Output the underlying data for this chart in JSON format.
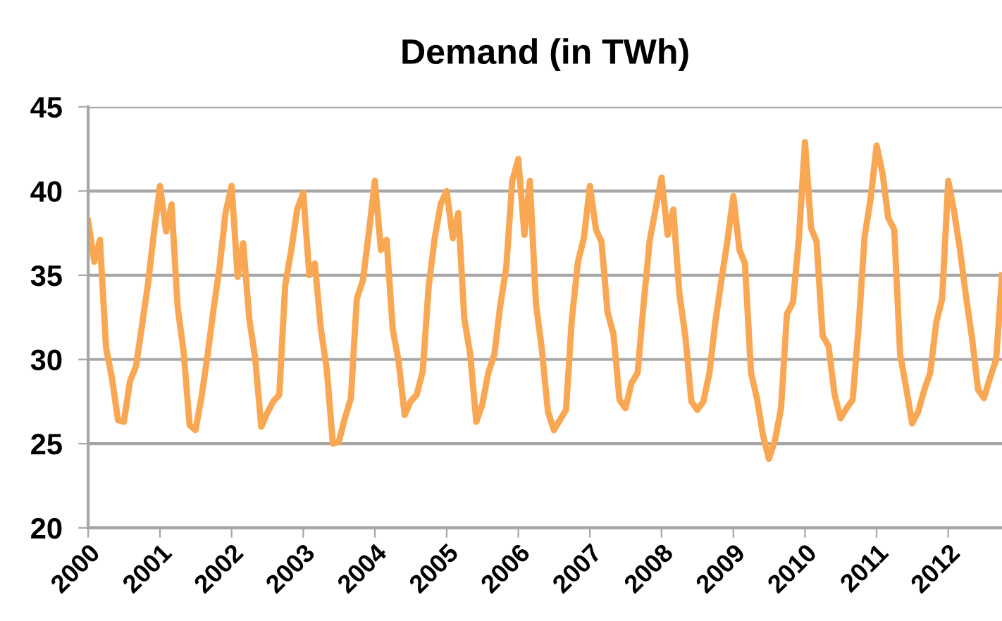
{
  "chart_data": {
    "type": "line",
    "title": "Demand (in TWh)",
    "x": [
      "2000-01",
      "2000-02",
      "2000-03",
      "2000-04",
      "2000-05",
      "2000-06",
      "2000-07",
      "2000-08",
      "2000-09",
      "2000-10",
      "2000-11",
      "2000-12",
      "2001-01",
      "2001-02",
      "2001-03",
      "2001-04",
      "2001-05",
      "2001-06",
      "2001-07",
      "2001-08",
      "2001-09",
      "2001-10",
      "2001-11",
      "2001-12",
      "2002-01",
      "2002-02",
      "2002-03",
      "2002-04",
      "2002-05",
      "2002-06",
      "2002-07",
      "2002-08",
      "2002-09",
      "2002-10",
      "2002-11",
      "2002-12",
      "2003-01",
      "2003-02",
      "2003-03",
      "2003-04",
      "2003-05",
      "2003-06",
      "2003-07",
      "2003-08",
      "2003-09",
      "2003-10",
      "2003-11",
      "2003-12",
      "2004-01",
      "2004-02",
      "2004-03",
      "2004-04",
      "2004-05",
      "2004-06",
      "2004-07",
      "2004-08",
      "2004-09",
      "2004-10",
      "2004-11",
      "2004-12",
      "2005-01",
      "2005-02",
      "2005-03",
      "2005-04",
      "2005-05",
      "2005-06",
      "2005-07",
      "2005-08",
      "2005-09",
      "2005-10",
      "2005-11",
      "2005-12",
      "2006-01",
      "2006-02",
      "2006-03",
      "2006-04",
      "2006-05",
      "2006-06",
      "2006-07",
      "2006-08",
      "2006-09",
      "2006-10",
      "2006-11",
      "2006-12",
      "2007-01",
      "2007-02",
      "2007-03",
      "2007-04",
      "2007-05",
      "2007-06",
      "2007-07",
      "2007-08",
      "2007-09",
      "2007-10",
      "2007-11",
      "2007-12",
      "2008-01",
      "2008-02",
      "2008-03",
      "2008-04",
      "2008-05",
      "2008-06",
      "2008-07",
      "2008-08",
      "2008-09",
      "2008-10",
      "2008-11",
      "2008-12",
      "2009-01",
      "2009-02",
      "2009-03",
      "2009-04",
      "2009-05",
      "2009-06",
      "2009-07",
      "2009-08",
      "2009-09",
      "2009-10",
      "2009-11",
      "2009-12",
      "2010-01",
      "2010-02",
      "2010-03",
      "2010-04",
      "2010-05",
      "2010-06",
      "2010-07",
      "2010-08",
      "2010-09",
      "2010-10",
      "2010-11",
      "2010-12",
      "2011-01",
      "2011-02",
      "2011-03",
      "2011-04",
      "2011-05",
      "2011-06",
      "2011-07",
      "2011-08",
      "2011-09",
      "2011-10",
      "2011-11",
      "2011-12",
      "2012-01",
      "2012-02",
      "2012-03",
      "2012-04",
      "2012-05",
      "2012-06",
      "2012-07",
      "2012-08",
      "2012-09",
      "2012-10"
    ],
    "series": [
      {
        "color": "#f9a752",
        "values": [
          38.2,
          35.8,
          37.1,
          30.7,
          28.9,
          26.4,
          26.3,
          28.7,
          29.6,
          32.0,
          34.5,
          37.5,
          40.3,
          37.6,
          39.2,
          33.1,
          30.5,
          26.1,
          25.8,
          27.8,
          30.3,
          33.0,
          35.5,
          38.7,
          40.3,
          34.9,
          36.9,
          32.4,
          30.1,
          26.0,
          26.8,
          27.5,
          27.9,
          34.4,
          36.5,
          38.9,
          39.9,
          35.0,
          35.7,
          31.8,
          29.4,
          25.0,
          25.1,
          26.5,
          27.7,
          33.6,
          34.7,
          37.5,
          40.6,
          36.5,
          37.1,
          31.8,
          29.9,
          26.7,
          27.5,
          27.9,
          29.3,
          34.3,
          37.2,
          39.2,
          40.0,
          37.2,
          38.7,
          32.4,
          30.3,
          26.3,
          27.3,
          29.2,
          30.3,
          33.2,
          35.5,
          40.6,
          41.9,
          37.4,
          40.6,
          33.3,
          30.6,
          26.9,
          25.8,
          26.4,
          27.0,
          32.4,
          35.8,
          37.2,
          40.3,
          37.7,
          37.0,
          32.8,
          31.5,
          27.6,
          27.1,
          28.6,
          29.2,
          33.2,
          37.0,
          38.9,
          40.8,
          37.4,
          38.9,
          33.9,
          31.4,
          27.5,
          27.0,
          27.5,
          29.2,
          32.2,
          34.7,
          37.0,
          39.7,
          36.5,
          35.7,
          29.2,
          27.7,
          25.5,
          24.1,
          25.2,
          27.1,
          32.7,
          33.4,
          37.2,
          42.9,
          37.8,
          37.0,
          31.4,
          30.8,
          27.9,
          26.5,
          27.1,
          27.6,
          31.9,
          37.3,
          39.5,
          42.7,
          41.0,
          38.4,
          37.7,
          30.3,
          28.3,
          26.2,
          26.9,
          28.2,
          29.2,
          32.2,
          33.6,
          40.6,
          38.7,
          36.5,
          33.7,
          31.3,
          28.2,
          27.7,
          28.9,
          30.0,
          35.0
        ]
      }
    ],
    "xlim": [
      "2000-01",
      "2012-10"
    ],
    "xticks": [
      "2000",
      "2001",
      "2002",
      "2003",
      "2004",
      "2005",
      "2006",
      "2007",
      "2008",
      "2009",
      "2010",
      "2011",
      "2012"
    ],
    "ylim": [
      20,
      45
    ],
    "yticks": [
      20,
      25,
      30,
      35,
      40,
      45
    ],
    "grid": "y",
    "legend": false,
    "marker": "none",
    "line_style": "solid"
  }
}
